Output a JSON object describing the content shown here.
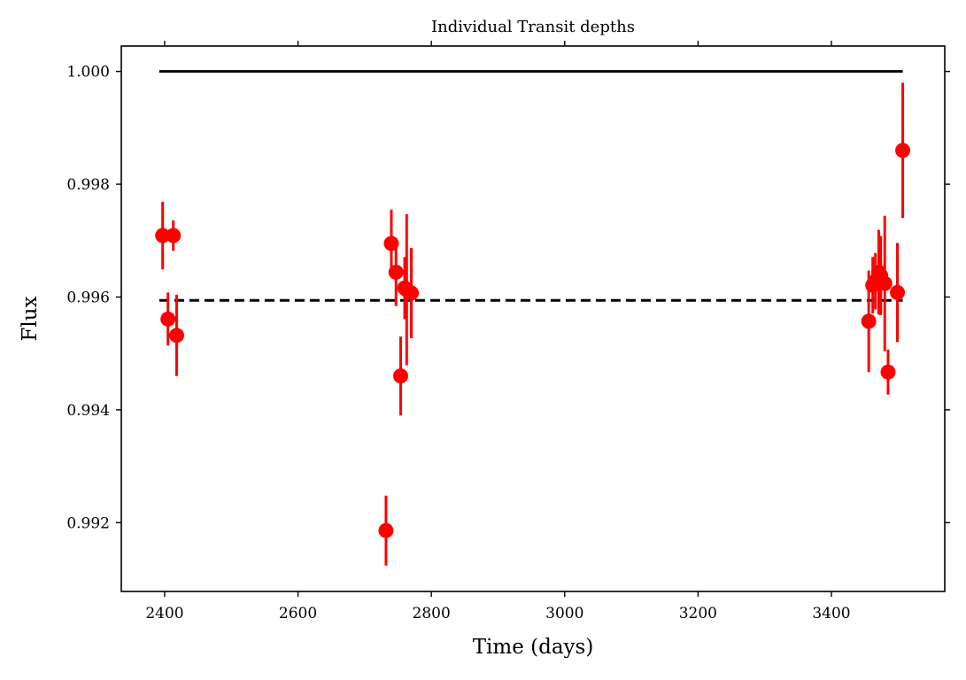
{
  "chart_data": {
    "type": "scatter",
    "title": "Individual Transit depths",
    "xlabel": "Time (days)",
    "ylabel": "Flux",
    "xlim": [
      2335,
      3570
    ],
    "ylim": [
      0.99078,
      1.00045
    ],
    "xticks": [
      2400,
      2600,
      2800,
      3000,
      3200,
      3400
    ],
    "xtick_labels": [
      "2400",
      "2600",
      "2800",
      "3000",
      "3200",
      "3400"
    ],
    "yticks": [
      0.992,
      0.994,
      0.996,
      0.998,
      1.0
    ],
    "ytick_labels": [
      "0.992",
      "0.994",
      "0.996",
      "0.998",
      "1.000"
    ],
    "grid": false,
    "legend": "none",
    "colors": {
      "points": "#ff0000",
      "reference_line": "#000000",
      "mean_line": "#000000"
    },
    "reference_line": {
      "style": "solid",
      "x": [
        2392,
        3507
      ],
      "y": [
        1.0,
        1.0
      ]
    },
    "mean_line": {
      "style": "dashed",
      "x": [
        2392,
        3507
      ],
      "y": [
        0.99594,
        0.99594
      ]
    },
    "points": [
      {
        "x": 2397,
        "y": 0.99709,
        "err": 0.0006
      },
      {
        "x": 2405,
        "y": 0.99561,
        "err": 0.00047
      },
      {
        "x": 2413,
        "y": 0.99709,
        "err": 0.00027
      },
      {
        "x": 2418,
        "y": 0.99532,
        "err": 0.00072
      },
      {
        "x": 2732,
        "y": 0.99186,
        "err": 0.00062
      },
      {
        "x": 2740,
        "y": 0.99695,
        "err": 0.0006
      },
      {
        "x": 2747,
        "y": 0.99644,
        "err": 0.0006
      },
      {
        "x": 2754,
        "y": 0.9946,
        "err": 0.0007
      },
      {
        "x": 2760,
        "y": 0.99616,
        "err": 0.00055
      },
      {
        "x": 2763,
        "y": 0.99613,
        "err": 0.00134
      },
      {
        "x": 2770,
        "y": 0.99607,
        "err": 0.0008
      },
      {
        "x": 3456,
        "y": 0.99557,
        "err": 0.0009
      },
      {
        "x": 3462,
        "y": 0.99621,
        "err": 0.0005
      },
      {
        "x": 3466,
        "y": 0.99628,
        "err": 0.0005
      },
      {
        "x": 3471,
        "y": 0.99644,
        "err": 0.00075
      },
      {
        "x": 3474,
        "y": 0.99638,
        "err": 0.0007
      },
      {
        "x": 3480,
        "y": 0.99624,
        "err": 0.0012
      },
      {
        "x": 3485,
        "y": 0.99467,
        "err": 0.0004
      },
      {
        "x": 3499,
        "y": 0.99608,
        "err": 0.00088
      },
      {
        "x": 3507,
        "y": 0.9986,
        "err": 0.0012
      }
    ]
  }
}
